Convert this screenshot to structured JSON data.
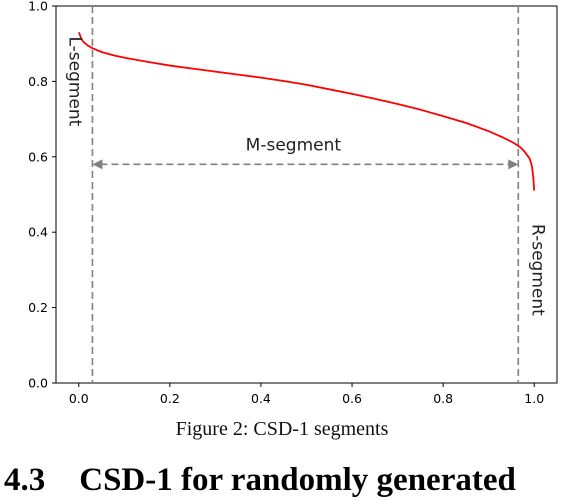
{
  "chart_data": {
    "type": "line",
    "title": "",
    "xlabel": "",
    "ylabel": "",
    "xlim": [
      -0.05,
      1.05
    ],
    "ylim": [
      0.0,
      1.0
    ],
    "xticks": [
      0.0,
      0.2,
      0.4,
      0.6,
      0.8,
      1.0
    ],
    "xtick_labels": [
      "0.0",
      "0.2",
      "0.4",
      "0.6",
      "0.8",
      "1.0"
    ],
    "yticks": [
      0.0,
      0.2,
      0.4,
      0.6,
      0.8,
      1.0
    ],
    "ytick_labels": [
      "0.0",
      "0.2",
      "0.4",
      "0.6",
      "0.8",
      "1.0"
    ],
    "grid": false,
    "line_color": "#ff0000",
    "guide_color": "#808080",
    "series": [
      {
        "x": [
          0.0,
          0.002,
          0.005,
          0.01,
          0.015,
          0.02,
          0.03,
          0.05,
          0.08,
          0.1,
          0.15,
          0.2,
          0.25,
          0.3,
          0.35,
          0.4,
          0.45,
          0.5,
          0.55,
          0.6,
          0.65,
          0.7,
          0.75,
          0.8,
          0.85,
          0.9,
          0.93,
          0.95,
          0.96,
          0.97,
          0.98,
          0.99,
          0.995,
          0.998,
          1.0
        ],
        "y": [
          0.93,
          0.925,
          0.915,
          0.905,
          0.9,
          0.895,
          0.888,
          0.878,
          0.868,
          0.863,
          0.852,
          0.842,
          0.834,
          0.826,
          0.818,
          0.81,
          0.801,
          0.791,
          0.779,
          0.767,
          0.754,
          0.74,
          0.725,
          0.708,
          0.69,
          0.668,
          0.652,
          0.64,
          0.633,
          0.625,
          0.612,
          0.595,
          0.575,
          0.545,
          0.51
        ]
      }
    ],
    "vertical_guides": [
      0.03,
      0.965
    ],
    "segment_arrow": {
      "x_start": 0.03,
      "x_end": 0.965,
      "y": 0.58
    },
    "annotations": {
      "left": "L-segment",
      "middle": "M-segment",
      "right": "R-segment"
    }
  },
  "caption": "Figure 2: CSD-1 segments",
  "section": {
    "number": "4.3",
    "title": "CSD-1 for randomly generated"
  }
}
